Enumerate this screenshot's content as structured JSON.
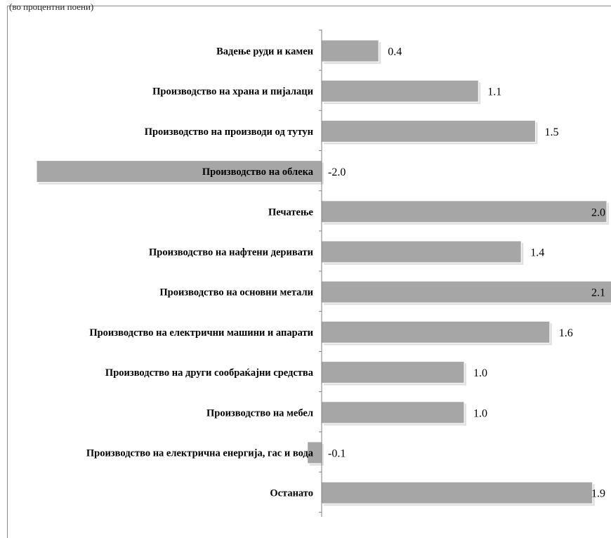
{
  "top_note": "(во процентни поени)",
  "chart_data": {
    "type": "bar",
    "orientation": "horizontal",
    "categories": [
      "Вадење руди и камен",
      "Производство на храна и пијалаци",
      "Производство на производи од тутун",
      "Производство на облека",
      "Печатење",
      "Производство на нафтени деривати",
      "Производство на основни метали",
      "Производство на електрични машини и апарати",
      "Производство на други сообраќајни средства",
      "Производство на мебел",
      "Производство на електрична енергија, гас и вода",
      "Останато"
    ],
    "values": [
      0.4,
      1.1,
      1.5,
      -2.0,
      2.0,
      1.4,
      2.1,
      1.6,
      1.0,
      1.0,
      -0.1,
      1.9
    ],
    "value_labels": [
      "0.4",
      "1.1",
      "1.5",
      "-2.0",
      "2.0",
      "1.4",
      "2.1",
      "1.6",
      "1.0",
      "1.0",
      "-0.1",
      "1.9"
    ],
    "xlim": [
      -2.0,
      2.1
    ],
    "bar_color": "#a6a6a6",
    "shadow_color": "#e0e0e0",
    "axis_color": "#7f7f7f",
    "grid": false,
    "legend": "none"
  }
}
